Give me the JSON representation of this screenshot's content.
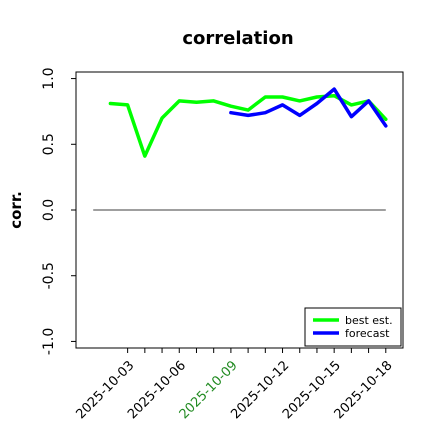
{
  "chart_data": {
    "type": "line",
    "title": "correlation",
    "ylabel": "corr.",
    "xlabel": "",
    "ylim": [
      -1.05,
      1.05
    ],
    "yticks": [
      -1.0,
      -0.5,
      0.0,
      0.5,
      1.0
    ],
    "ytick_labels": [
      "-1.0",
      "-0.5",
      "0.0",
      "0.5",
      "1.0"
    ],
    "x_dates": [
      "2025-10-01",
      "2025-10-02",
      "2025-10-03",
      "2025-10-04",
      "2025-10-05",
      "2025-10-06",
      "2025-10-07",
      "2025-10-08",
      "2025-10-09",
      "2025-10-10",
      "2025-10-11",
      "2025-10-12",
      "2025-10-13",
      "2025-10-14",
      "2025-10-15",
      "2025-10-16",
      "2025-10-17",
      "2025-10-18"
    ],
    "xlim": [
      "2025-09-30",
      "2025-10-19"
    ],
    "xticks": [
      "2025-10-03",
      "2025-10-04",
      "2025-10-05",
      "2025-10-06",
      "2025-10-07",
      "2025-10-08",
      "2025-10-09",
      "2025-10-10",
      "2025-10-11",
      "2025-10-12",
      "2025-10-13",
      "2025-10-14",
      "2025-10-15",
      "2025-10-16",
      "2025-10-17",
      "2025-10-18"
    ],
    "xtick_labels": [
      "2025-10-03",
      "",
      "",
      "2025-10-06",
      "",
      "",
      "2025-10-09",
      "",
      "",
      "2025-10-12",
      "",
      "",
      "2025-10-15",
      "",
      "",
      "2025-10-18"
    ],
    "highlight_tick": "2025-10-09",
    "highlight_color": "#228B22",
    "reference_line": 0.0,
    "grid": false,
    "legend_position": "lower-right",
    "series": [
      {
        "name": "best est.",
        "color": "#00ff00",
        "x": [
          "2025-10-02",
          "2025-10-03",
          "2025-10-04",
          "2025-10-05",
          "2025-10-06",
          "2025-10-07",
          "2025-10-08",
          "2025-10-09",
          "2025-10-10",
          "2025-10-11",
          "2025-10-12",
          "2025-10-13",
          "2025-10-14",
          "2025-10-15",
          "2025-10-16",
          "2025-10-17",
          "2025-10-18"
        ],
        "values": [
          0.81,
          0.8,
          0.41,
          0.7,
          0.83,
          0.82,
          0.83,
          0.79,
          0.76,
          0.86,
          0.86,
          0.83,
          0.86,
          0.87,
          0.8,
          0.83,
          0.69
        ]
      },
      {
        "name": "forecast",
        "color": "#0000ff",
        "x": [
          "2025-10-09",
          "2025-10-10",
          "2025-10-11",
          "2025-10-12",
          "2025-10-13",
          "2025-10-14",
          "2025-10-15",
          "2025-10-16",
          "2025-10-17",
          "2025-10-18"
        ],
        "values": [
          0.74,
          0.72,
          0.74,
          0.8,
          0.72,
          0.81,
          0.92,
          0.71,
          0.83,
          0.64
        ]
      }
    ]
  }
}
